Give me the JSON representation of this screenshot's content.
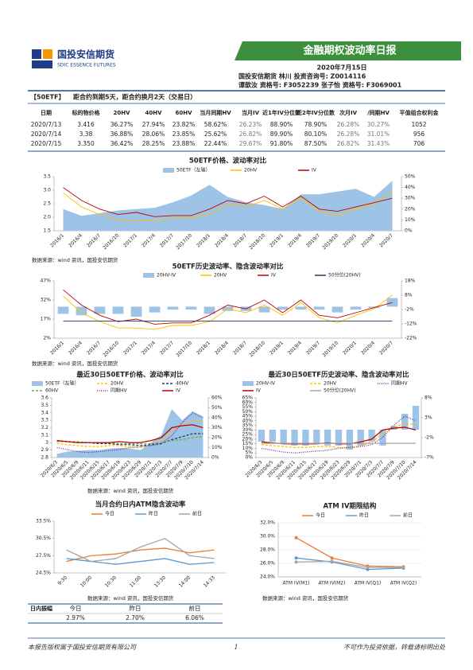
{
  "header": {
    "logo_cn": "国投安信期货",
    "logo_en": "SDIC ESSENCE FUTURES",
    "banner": "金融期权波动率日报",
    "date": "2020年7月15日",
    "line1": "国投安信期货 林川 投资咨询号: Z0014116",
    "line2": "谭歆汝 资格号: F3052239    张子怡 资格号: F3069001"
  },
  "info": {
    "tag": "【50ETF】",
    "text": "距合约到期5天，距合约换月2天（交易日）"
  },
  "table": {
    "headers": [
      "日期",
      "标的物价格",
      "20HV",
      "40HV",
      "60HV",
      "当月同期HV",
      "当月IV",
      "近1年IV分位数",
      "近2年IV分位数",
      "次月IV",
      "/同期HV",
      "平值组合权利金"
    ],
    "rows": [
      [
        "2020/7/13",
        "3.416",
        "36.27%",
        "27.94%",
        "23.82%",
        "58.62%",
        "26.23%",
        "88.90%",
        "78.90%",
        "26.28%",
        "30.27%",
        "1052"
      ],
      [
        "2020/7/14",
        "3.38",
        "36.88%",
        "28.06%",
        "23.85%",
        "25.62%",
        "26.82%",
        "89.90%",
        "80.10%",
        "26.28%",
        "31.01%",
        "956"
      ],
      [
        "2020/7/15",
        "3.350",
        "36.42%",
        "28.25%",
        "23.88%",
        "22.44%",
        "29.67%",
        "91.80%",
        "87.50%",
        "26.82%",
        "31.43%",
        "706"
      ]
    ]
  },
  "sources": [
    "数据来源：wind 资讯，国投安信期货",
    "数据来源：wind 资讯，国投安信期货",
    "数据来源：wind 资讯，国投安信期货",
    "数据来源：wind 资讯，国投安信期货",
    "数据来源：wind 资讯，国投安信期货"
  ],
  "amplitude": {
    "label": "日内振幅",
    "headers": [
      "今日",
      "昨日",
      "前日"
    ],
    "values": [
      "2.97%",
      "2.70%",
      "6.06%"
    ]
  },
  "footer": {
    "left": "本报告版权属于国投安信期货有限公司",
    "page": "1",
    "right": "不可作为投资依据，转载请标明出处"
  },
  "chart_data": [
    {
      "type": "line",
      "title": "50ETF价格、波动率对比",
      "categories": [
        "2016/1",
        "2016/4",
        "2016/7",
        "2016/10",
        "2017/1",
        "2017/4",
        "2017/7",
        "2017/10",
        "2018/1",
        "2018/4",
        "2018/7",
        "2018/10",
        "2019/1",
        "2019/4",
        "2019/7",
        "2019/10",
        "2020/1",
        "2020/4",
        "2020/7"
      ],
      "series": [
        {
          "name": "50ETF（左轴）",
          "type": "area",
          "color": "#9dc3e6",
          "values": [
            2.3,
            2.05,
            2.15,
            2.25,
            2.3,
            2.35,
            2.55,
            2.8,
            3.2,
            2.75,
            2.55,
            2.45,
            2.3,
            2.85,
            2.85,
            2.95,
            3.05,
            2.75,
            3.35
          ]
        },
        {
          "name": "20HV",
          "type": "line",
          "color": "#ffc000",
          "axis": "y2",
          "values": [
            35,
            22,
            15,
            10,
            10,
            9,
            12,
            12,
            15,
            25,
            22,
            28,
            20,
            30,
            18,
            14,
            20,
            25,
            36
          ]
        },
        {
          "name": "IV",
          "type": "line",
          "color": "#c00000",
          "axis": "y2",
          "values": [
            40,
            28,
            20,
            15,
            17,
            13,
            14,
            14,
            20,
            28,
            25,
            32,
            22,
            32,
            20,
            18,
            22,
            26,
            30
          ]
        }
      ],
      "ylim": [
        1.5,
        3.5
      ],
      "yticks": [
        1.5,
        {
          "value": 2,
          "label": "2.0"
        },
        2.5,
        {
          "value": 3,
          "label": "3.0"
        },
        3.5
      ],
      "y2lim": [
        0,
        50
      ],
      "y2ticks": [
        {
          "value": 0,
          "label": "0%"
        },
        {
          "value": 10,
          "label": "10%"
        },
        {
          "value": 20,
          "label": "20%"
        },
        {
          "value": 30,
          "label": "30%"
        },
        {
          "value": 40,
          "label": "40%"
        },
        {
          "value": 50,
          "label": "50%"
        }
      ],
      "grid": false
    },
    {
      "type": "line",
      "title": "50ETF历史波动率、隐含波动率对比",
      "categories": [
        "2016/1",
        "2016/4",
        "2016/7",
        "2016/10",
        "2017/1",
        "2017/4",
        "2017/7",
        "2017/10",
        "2018/1",
        "2018/4",
        "2018/7",
        "2018/10",
        "2019/1",
        "2019/4",
        "2019/7",
        "2019/10",
        "2020/1",
        "2020/4",
        "2020/7"
      ],
      "series": [
        {
          "name": "20HV-IV",
          "type": "bar",
          "color": "#9dc3e6",
          "axis": "y2",
          "values": [
            -5,
            -6,
            -5,
            -5,
            -7,
            -4,
            -2,
            -2,
            -5,
            -3,
            -3,
            -4,
            -2,
            -2,
            -2,
            -4,
            -2,
            -1,
            6
          ]
        },
        {
          "name": "20HV",
          "type": "line",
          "color": "#ffc000",
          "values": [
            35,
            22,
            15,
            10,
            10,
            9,
            12,
            12,
            15,
            25,
            22,
            28,
            20,
            30,
            18,
            14,
            20,
            25,
            36
          ]
        },
        {
          "name": "IV",
          "type": "line",
          "color": "#c00000",
          "values": [
            40,
            28,
            20,
            15,
            17,
            13,
            14,
            14,
            20,
            28,
            25,
            32,
            22,
            32,
            20,
            18,
            22,
            26,
            30
          ]
        },
        {
          "name": "50分位(20HV)",
          "type": "line",
          "color": "#1f3864",
          "values": [
            15.5,
            15.5,
            15.5,
            15.5,
            15.5,
            15.5,
            15.5,
            15.5,
            15.5,
            15.5,
            15.5,
            15.5,
            15.5,
            15.5,
            15.5,
            15.5,
            15.5,
            15.5,
            15.5
          ]
        }
      ],
      "ylim": [
        2,
        47
      ],
      "yticks": [
        {
          "value": 2,
          "label": "2%"
        },
        {
          "value": 17,
          "label": "17%"
        },
        {
          "value": 32,
          "label": "32%"
        },
        {
          "value": 47,
          "label": "47%"
        }
      ],
      "y2lim": [
        -22,
        18
      ],
      "y2ticks": [
        {
          "value": -22,
          "label": "-22%"
        },
        {
          "value": -12,
          "label": "-12%"
        },
        {
          "value": -2,
          "label": "-2%"
        },
        {
          "value": 8,
          "label": "8%"
        },
        {
          "value": 18,
          "label": "18%"
        }
      ],
      "grid": false
    },
    {
      "type": "line",
      "title": "最近30日50ETF价格、波动率对比",
      "categories": [
        "2020/6/3",
        "2020/6/5",
        "2020/6/9",
        "2020/6/11",
        "2020/6/15",
        "2020/6/17",
        "2020/6/19",
        "2020/6/23",
        "2020/6/29",
        "2020/7/1",
        "2020/7/3",
        "2020/7/7",
        "2020/7/9",
        "2020/7/10",
        "2020/7/14"
      ],
      "series": [
        {
          "name": "50ETF（左轴）",
          "type": "area",
          "color": "#9dc3e6",
          "values": [
            2.85,
            2.88,
            2.89,
            2.9,
            2.9,
            2.92,
            2.93,
            2.92,
            2.9,
            3.0,
            3.1,
            3.45,
            3.3,
            3.42,
            3.35
          ]
        },
        {
          "name": "20HV",
          "type": "line",
          "style": "dashed",
          "color": "#ffc000",
          "axis": "y2",
          "values": [
            14,
            13,
            12,
            11,
            11,
            12,
            12,
            11,
            10,
            13,
            17,
            26,
            33,
            37,
            36
          ]
        },
        {
          "name": "40HV",
          "type": "line",
          "style": "dashed",
          "color": "#1f3864",
          "axis": "y2",
          "values": [
            17,
            16,
            15,
            15,
            14,
            14,
            13,
            13,
            12,
            13,
            14,
            18,
            21,
            24,
            24
          ]
        },
        {
          "name": "60HV",
          "type": "line",
          "style": "dashed",
          "color": "#70ad47",
          "axis": "y2",
          "values": [
            16,
            16,
            16,
            15,
            15,
            15,
            14,
            14,
            14,
            14,
            15,
            17,
            18,
            20,
            21
          ]
        },
        {
          "name": "同期HV",
          "type": "line",
          "style": "dotted",
          "color": "#7030a0",
          "axis": "y2",
          "values": [
            10,
            8,
            6,
            5,
            6,
            7,
            8,
            10,
            11,
            12,
            14,
            22,
            35,
            45,
            40
          ]
        },
        {
          "name": "IV",
          "type": "line",
          "color": "#c00000",
          "axis": "y2",
          "values": [
            17,
            16,
            15,
            15,
            15,
            15,
            16,
            15,
            15,
            17,
            20,
            30,
            32,
            33,
            30
          ]
        }
      ],
      "ylim": [
        2.8,
        3.6
      ],
      "yticks": [
        2.8,
        2.9,
        3,
        3.1,
        3.2,
        3.3,
        3.4,
        3.5,
        3.6
      ],
      "y2lim": [
        0,
        60
      ],
      "y2ticks": [
        {
          "value": 0,
          "label": "0%"
        },
        {
          "value": 10,
          "label": "10%"
        },
        {
          "value": 20,
          "label": "20%"
        },
        {
          "value": 30,
          "label": "30%"
        },
        {
          "value": 40,
          "label": "40%"
        },
        {
          "value": 50,
          "label": "50%"
        },
        {
          "value": 60,
          "label": "60%"
        }
      ],
      "grid": false
    },
    {
      "type": "line",
      "title": "最近30日50ETF历史波动率、隐含波动率对比",
      "categories": [
        "2020/6/3",
        "2020/6/5",
        "2020/6/9",
        "2020/6/11",
        "2020/6/15",
        "2020/6/17",
        "2020/6/19",
        "2020/6/23",
        "2020/6/29",
        "2020/7/1",
        "2020/7/3",
        "2020/7/7",
        "2020/7/9",
        "2020/7/10",
        "2020/7/14"
      ],
      "series": [
        {
          "name": "20HV-IV",
          "type": "bar",
          "color": "#9dc3e6",
          "axis": "y2",
          "values": [
            -3,
            -3,
            -3.5,
            -4,
            -4,
            -3.5,
            -4,
            -4,
            -5,
            -4,
            -3,
            -4,
            1,
            4,
            6
          ]
        },
        {
          "name": "20HV",
          "type": "line",
          "style": "dashed",
          "color": "#ffc000",
          "values": [
            14,
            13,
            12,
            11,
            11,
            12,
            12,
            11,
            10,
            13,
            17,
            26,
            33,
            37,
            36
          ]
        },
        {
          "name": "同期HV",
          "type": "line",
          "style": "dotted",
          "color": "#7030a0",
          "values": [
            10,
            8,
            6,
            5,
            6,
            7,
            8,
            10,
            11,
            12,
            14,
            22,
            35,
            45,
            40
          ]
        },
        {
          "name": "IV",
          "type": "line",
          "color": "#c00000",
          "values": [
            17,
            16,
            15,
            15,
            15,
            15,
            16,
            15,
            15,
            17,
            20,
            30,
            32,
            33,
            30
          ]
        },
        {
          "name": "50分位(20HV)",
          "type": "line",
          "color": "#a5a5a5",
          "values": [
            15.5,
            15.5,
            15.5,
            15.5,
            15.5,
            15.5,
            15.5,
            15.5,
            15.5,
            15.5,
            15.5,
            15.5,
            15.5,
            15.5,
            15.5
          ]
        }
      ],
      "ylim": [
        0,
        65
      ],
      "yticks": [
        {
          "value": 0,
          "label": "0%"
        },
        {
          "value": 5,
          "label": "5%"
        },
        {
          "value": 10,
          "label": "10%"
        },
        {
          "value": 15,
          "label": "15%"
        },
        {
          "value": 20,
          "label": "20%"
        },
        {
          "value": 25,
          "label": "25%"
        },
        {
          "value": 30,
          "label": "30%"
        },
        {
          "value": 35,
          "label": "35%"
        },
        {
          "value": 40,
          "label": "40%"
        },
        {
          "value": 45,
          "label": "45%"
        },
        {
          "value": 50,
          "label": "50%"
        },
        {
          "value": 55,
          "label": "55%"
        },
        {
          "value": 60,
          "label": "60%"
        },
        {
          "value": 65,
          "label": "65%"
        }
      ],
      "y2lim": [
        -7,
        8
      ],
      "y2ticks": [
        {
          "value": -7,
          "label": "-7%"
        },
        {
          "value": -2,
          "label": "-2%"
        },
        {
          "value": 3,
          "label": "3%"
        },
        {
          "value": 8,
          "label": "8%"
        }
      ],
      "grid": false
    },
    {
      "type": "line",
      "title": "当月合约日内ATM隐含波动率",
      "categories": [
        "9:30",
        "10:00",
        "10:30",
        "11:00",
        "13:30",
        "14:00",
        "14:33"
      ],
      "series": [
        {
          "name": "今日",
          "type": "line",
          "color": "#ed7d31",
          "values": [
            26.5,
            27.5,
            27.8,
            28.5,
            28.8,
            28.0,
            28.5
          ]
        },
        {
          "name": "昨日",
          "type": "line",
          "color": "#5b9bd5",
          "values": [
            27,
            26.5,
            26.0,
            26.5,
            27.0,
            26.0,
            26.3
          ]
        },
        {
          "name": "前日",
          "type": "line",
          "color": "#a5a5a5",
          "values": [
            28.5,
            26.5,
            27,
            29.0,
            30.5,
            27.5,
            27.0
          ]
        }
      ],
      "ylim": [
        24.5,
        33.5
      ],
      "yticks": [
        {
          "value": 24.5,
          "label": "24.5%"
        },
        {
          "value": 27.5,
          "label": "27.5%"
        },
        {
          "value": 30.5,
          "label": "30.5%"
        },
        {
          "value": 33.5,
          "label": "33.5%"
        }
      ],
      "grid": false
    },
    {
      "type": "line",
      "title": "ATM IV期限结构",
      "categories": [
        "ATM IV(M1)",
        "ATM IV(M2)",
        "ATM IV(Q1)",
        "ATM IV(Q2)"
      ],
      "series": [
        {
          "name": "今日",
          "type": "line",
          "color": "#ed7d31",
          "values": [
            29.8,
            26.8,
            25.6,
            25.5
          ]
        },
        {
          "name": "昨日",
          "type": "line",
          "color": "#5b9bd5",
          "values": [
            26.8,
            26.2,
            25.1,
            25.3
          ]
        },
        {
          "name": "前日",
          "type": "line",
          "color": "#a5a5a5",
          "values": [
            26.2,
            26.3,
            25.4,
            25.4
          ]
        }
      ],
      "ylim": [
        24,
        32
      ],
      "yticks": [
        {
          "value": 24,
          "label": "24.0%"
        },
        {
          "value": 26,
          "label": "26.0%"
        },
        {
          "value": 28,
          "label": "28.0%"
        },
        {
          "value": 30,
          "label": "30.0%"
        },
        {
          "value": 32,
          "label": "32.0%"
        }
      ],
      "grid": true,
      "markers": true
    }
  ]
}
